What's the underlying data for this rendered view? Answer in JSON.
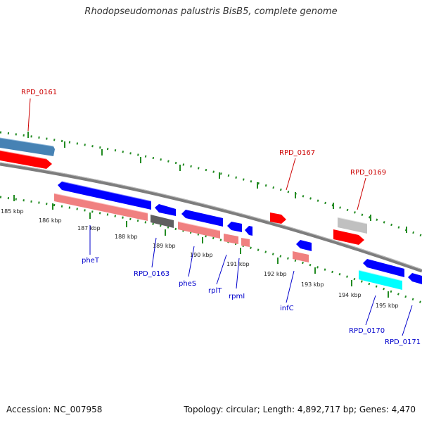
{
  "title": "Rhodopseudomonas palustris BisB5, complete genome",
  "footer": {
    "accession": "Accession: NC_007958",
    "summary": "Topology: circular; Length: 4,892,717 bp; Genes: 4,470"
  },
  "ticks": [
    "185 kbp",
    "186 kbp",
    "187 kbp",
    "188 kbp",
    "189 kbp",
    "190 kbp",
    "191 kbp",
    "192 kbp",
    "193 kbp",
    "194 kbp",
    "195 kbp"
  ],
  "gene_labels_top": [
    "RPD_0161",
    "RPD_0167",
    "RPD_0169"
  ],
  "gene_labels_bottom": [
    "pheT",
    "RPD_0163",
    "pheS",
    "rplT",
    "rpmI",
    "infC",
    "RPD_0170",
    "RPD_0171"
  ],
  "colors": {
    "cds": "#ff0000",
    "gene": "#0000ff",
    "rna_top": "#4682b4",
    "rna_bottom": "#f08080",
    "misc_top": "#c0c0c0",
    "misc_bottom": "#606060",
    "trna": "#00ffff",
    "backbone": "#808080",
    "tick": "#228b22",
    "label_top": "#cc0000",
    "label_bottom": "#0000cc"
  }
}
